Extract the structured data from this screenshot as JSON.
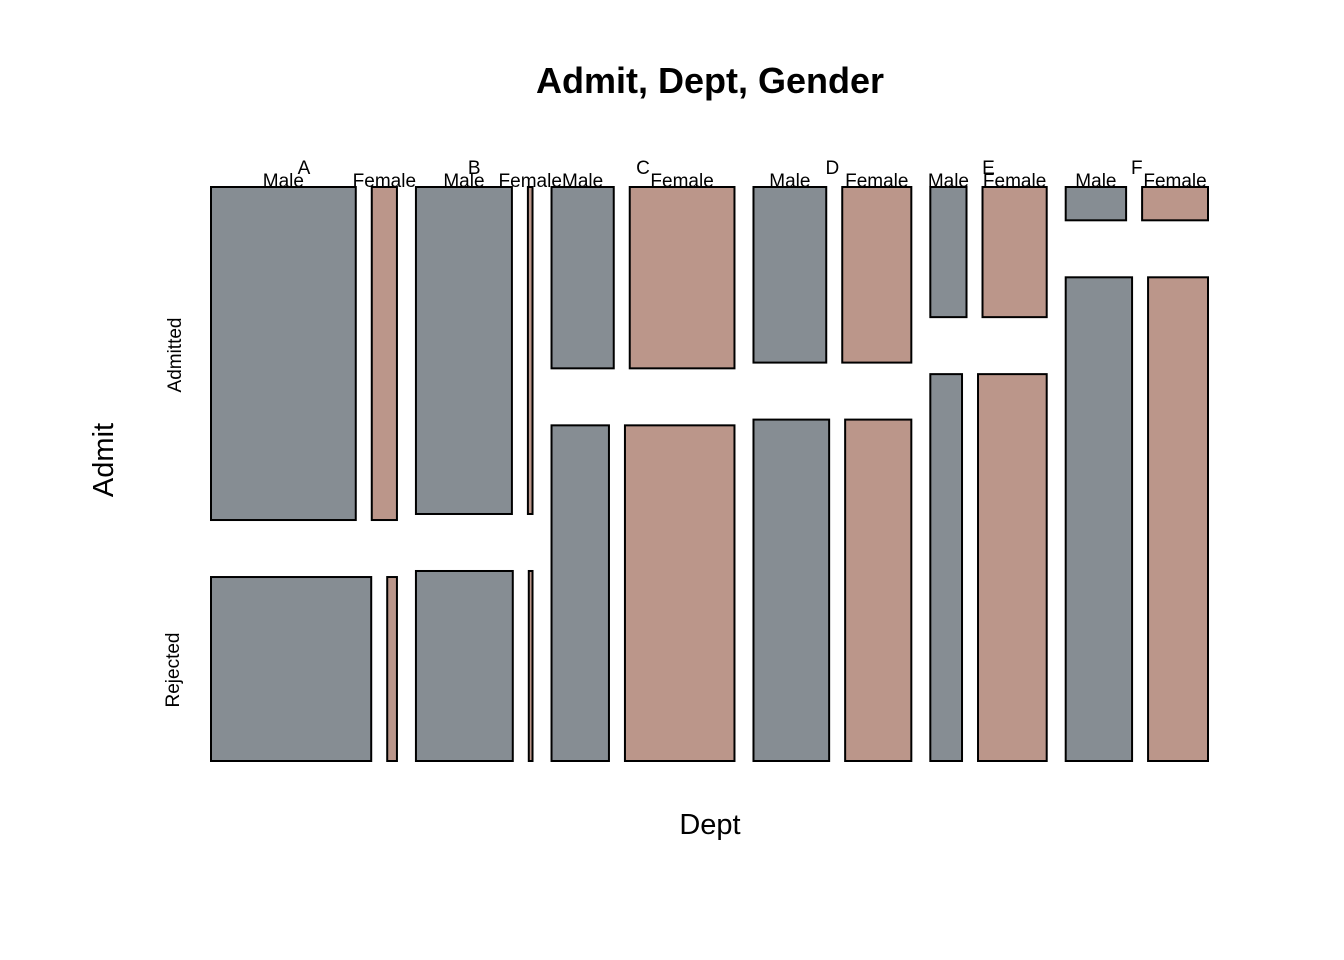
{
  "chart_data": {
    "type": "mosaic",
    "title": "Admit, Dept, Gender",
    "xlabel": "Dept",
    "ylabel": "Admit",
    "admit_levels": [
      "Admitted",
      "Rejected"
    ],
    "depts": [
      {
        "name": "A",
        "male": {
          "admitted": 512,
          "rejected": 313
        },
        "female": {
          "admitted": 89,
          "rejected": 19
        }
      },
      {
        "name": "B",
        "male": {
          "admitted": 353,
          "rejected": 207
        },
        "female": {
          "admitted": 17,
          "rejected": 8
        }
      },
      {
        "name": "C",
        "male": {
          "admitted": 120,
          "rejected": 205
        },
        "female": {
          "admitted": 202,
          "rejected": 391
        }
      },
      {
        "name": "D",
        "male": {
          "admitted": 138,
          "rejected": 279
        },
        "female": {
          "admitted": 131,
          "rejected": 244
        }
      },
      {
        "name": "E",
        "male": {
          "admitted": 53,
          "rejected": 138
        },
        "female": {
          "admitted": 94,
          "rejected": 299
        }
      },
      {
        "name": "F",
        "male": {
          "admitted": 22,
          "rejected": 351
        },
        "female": {
          "admitted": 24,
          "rejected": 317
        }
      }
    ],
    "gender_labels": {
      "male": "Male",
      "female": "Female"
    },
    "colors": {
      "male": "#868D93",
      "female": "#BB968A",
      "stroke": "#000000"
    }
  }
}
